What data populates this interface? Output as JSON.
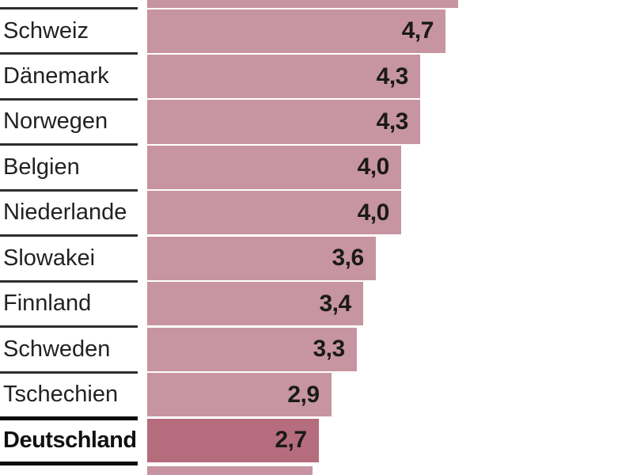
{
  "chart_data": {
    "type": "bar",
    "orientation": "horizontal",
    "title": "",
    "xlabel": "",
    "ylabel": "",
    "grid": false,
    "legend": false,
    "xlim": [
      0,
      5
    ],
    "categories": [
      "Schweiz",
      "Dänemark",
      "Norwegen",
      "Belgien",
      "Niederlande",
      "Slowakei",
      "Finnland",
      "Schweden",
      "Tschechien",
      "Deutschland"
    ],
    "values": [
      4.7,
      4.3,
      4.3,
      4.0,
      4.0,
      3.6,
      3.4,
      3.3,
      2.9,
      2.7
    ],
    "value_labels": [
      "4,7",
      "4,3",
      "4,3",
      "4,0",
      "4,0",
      "3,6",
      "3,4",
      "3,3",
      "2,9",
      "2,7"
    ],
    "decimal_separator": ",",
    "highlighted_category": "Deutschland",
    "cropped_bar_top": {
      "approx_value": 4.9,
      "label_visible": false
    },
    "cropped_bar_bottom": {
      "approx_value": 2.6,
      "label_visible": false
    }
  },
  "colors": {
    "bar": "#c794a1",
    "bar_highlight": "#b56d7d",
    "separator_thin": "#2e2e2e",
    "separator_thick": "#0d0d0d",
    "label_text": "#222222",
    "value_text": "#1a1a1a",
    "background": "#ffffff"
  }
}
